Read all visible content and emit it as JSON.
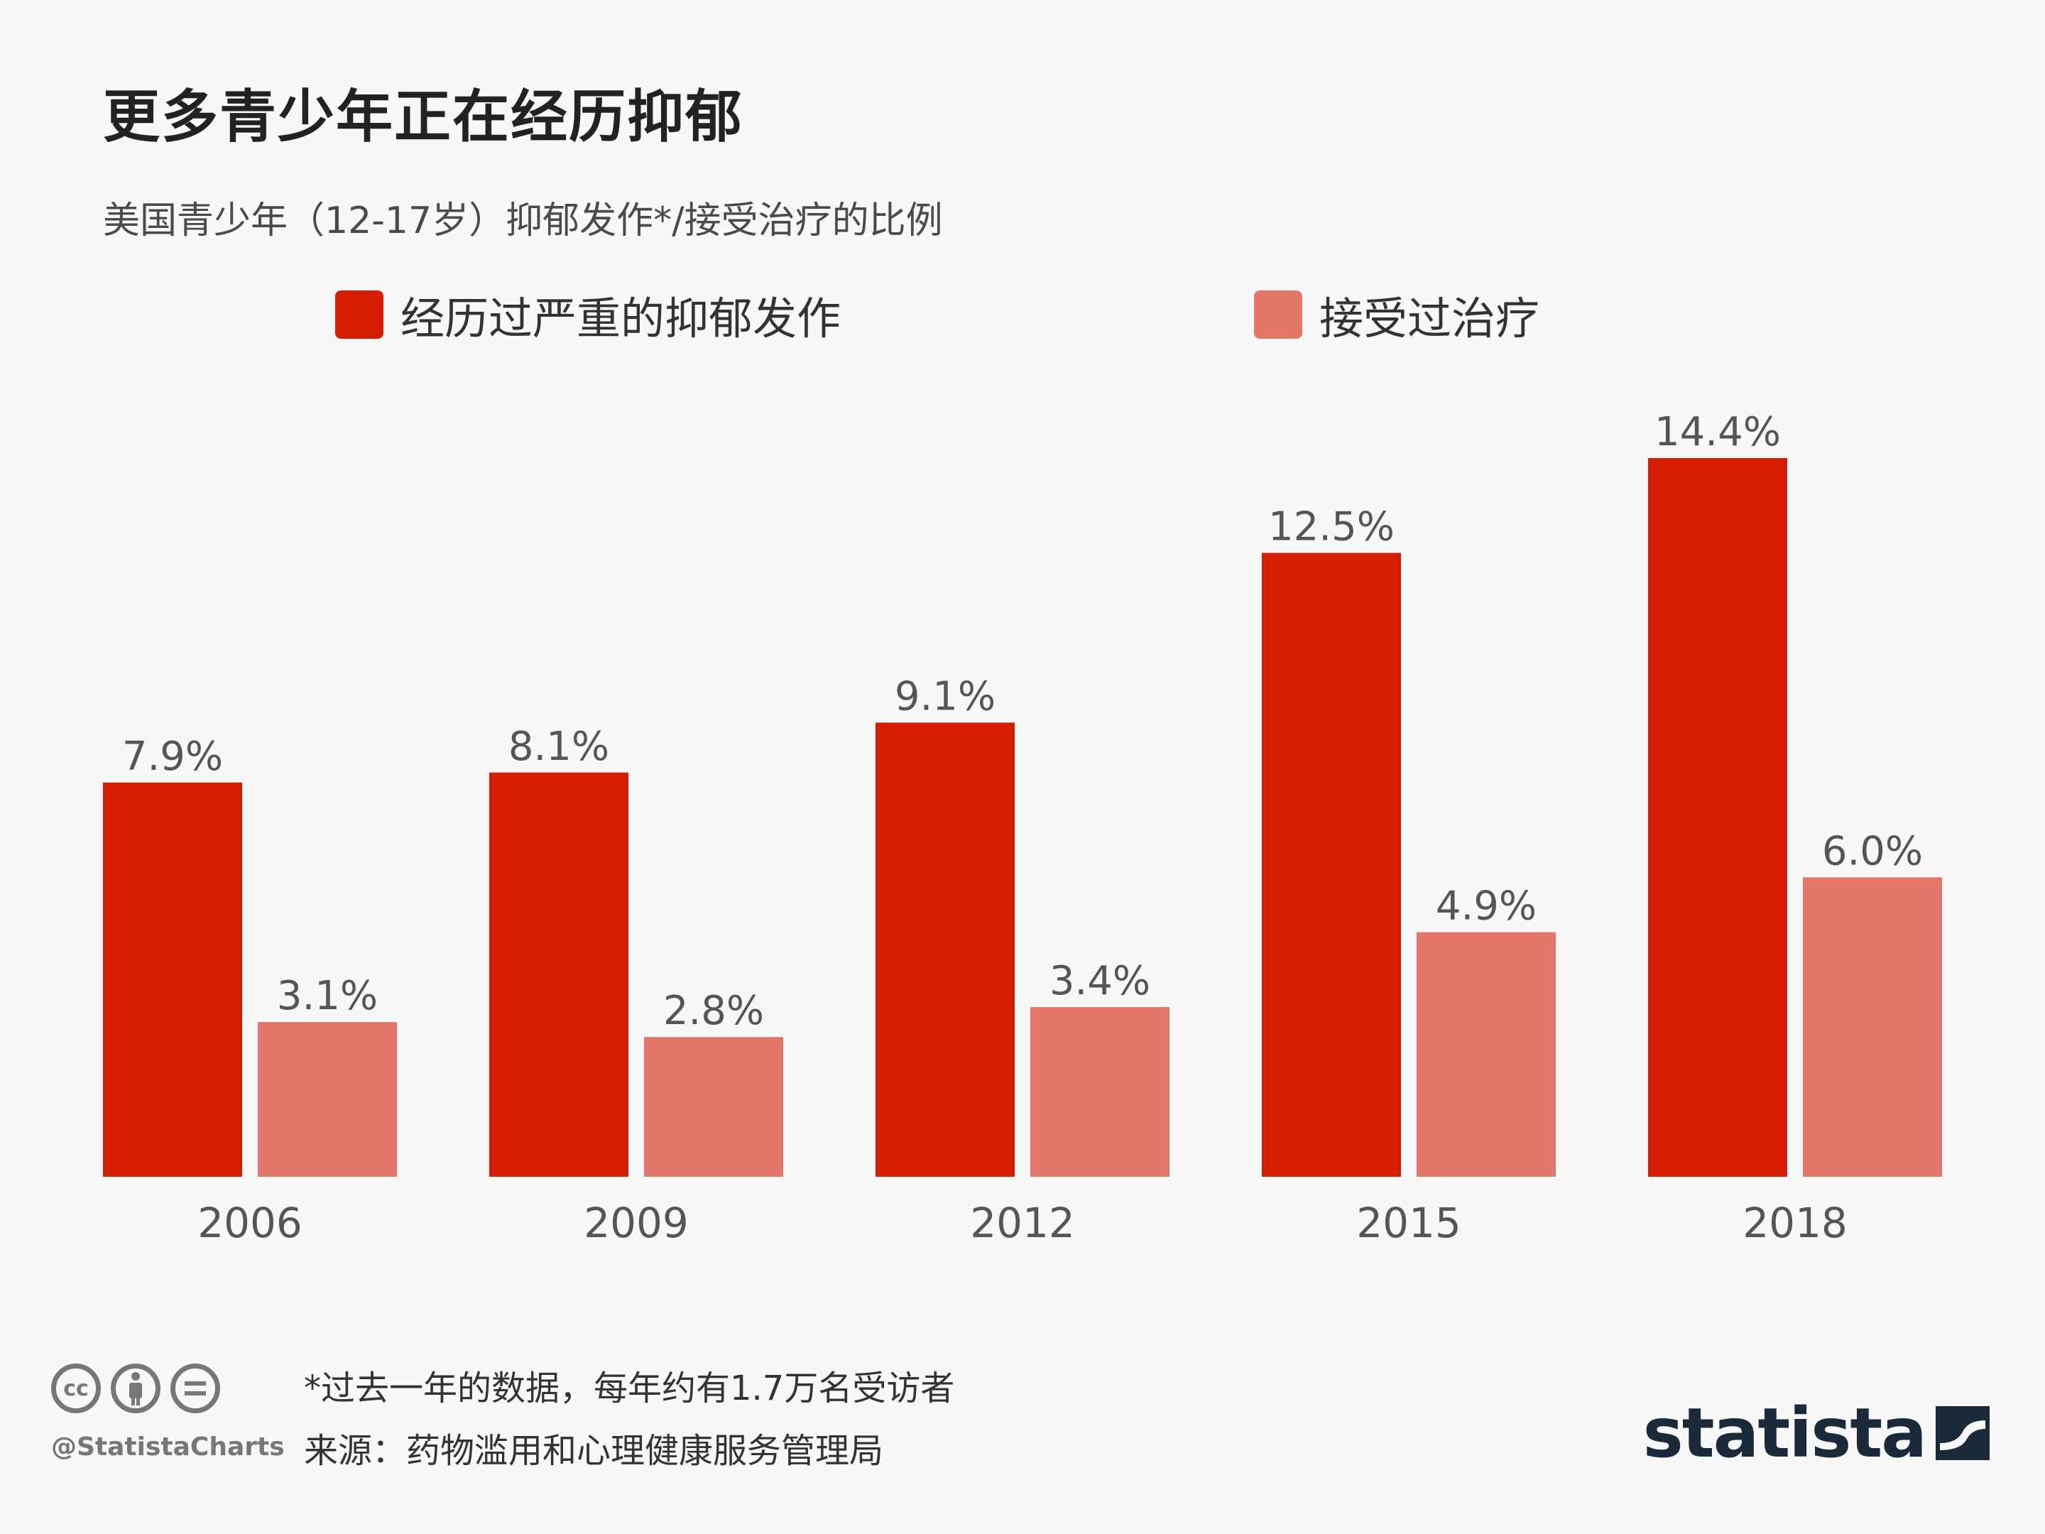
{
  "title": "更多青少年正在经历抑郁",
  "subtitle": "美国青少年（12-17岁）抑郁发作*/接受治疗的比例",
  "legend": [
    {
      "label": "经历过严重的抑郁发作",
      "color": "#d71d00"
    },
    {
      "label": "接受过治疗",
      "color": "#e5766a"
    }
  ],
  "chart_data": {
    "type": "bar",
    "categories": [
      "2006",
      "2009",
      "2012",
      "2015",
      "2018"
    ],
    "series": [
      {
        "name": "经历过严重的抑郁发作",
        "values": [
          7.9,
          8.1,
          9.1,
          12.5,
          14.4
        ],
        "labels": [
          "7.9%",
          "8.1%",
          "9.1%",
          "12.5%",
          "14.4%"
        ],
        "color": "#d71d00"
      },
      {
        "name": "接受过治疗",
        "values": [
          3.1,
          2.8,
          3.4,
          4.9,
          6.0
        ],
        "labels": [
          "3.1%",
          "2.8%",
          "3.4%",
          "4.9%",
          "6.0%"
        ],
        "color": "#e5766a"
      }
    ],
    "ylim": [
      0,
      14.4
    ],
    "grid": false,
    "legend_position": "top"
  },
  "footer": {
    "note": "*过去一年的数据，每年约有1.7万名受访者",
    "source": "来源：药物滥用和心理健康服务管理局",
    "handle": "@StatistaCharts",
    "brand": "statista",
    "cc_icons": [
      "cc-icon",
      "by-icon",
      "nd-icon"
    ]
  }
}
